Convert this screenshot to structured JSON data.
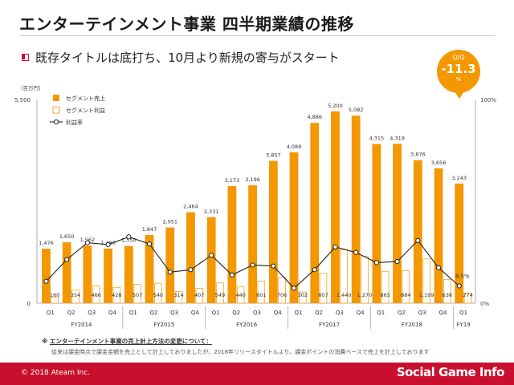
{
  "header": {
    "title": "エンターテインメント事業 四半期業績の推移",
    "subtitle": "既存タイトルは底打ち、10月より新規の寄与がスタート"
  },
  "badge": {
    "label": "Q/Q",
    "value": "-11.3",
    "unit": "%"
  },
  "chart_data": {
    "type": "bar",
    "y_unit_label": "（百万円）",
    "y_left_ticks": [
      "5,500",
      "0"
    ],
    "y_right_ticks": [
      "100%",
      "0%"
    ],
    "ylim_left": [
      0,
      5500
    ],
    "ylim_right": [
      0,
      100
    ],
    "legend": [
      "セグメント売上",
      "セグメント利益",
      "利益率"
    ],
    "legend_position": "top-left",
    "grid": false,
    "colors": {
      "sales": "#f39800",
      "profit_fill": "#ffffff",
      "profit_edge": "#f39800",
      "line": "#222222"
    },
    "categories": [
      "Q1",
      "Q2",
      "Q3",
      "Q4",
      "Q1",
      "Q2",
      "Q3",
      "Q4",
      "Q1",
      "Q2",
      "Q3",
      "Q4",
      "Q1",
      "Q2",
      "Q3",
      "Q4",
      "Q1",
      "Q2",
      "Q3",
      "Q4",
      "Q1"
    ],
    "fiscal_years": [
      {
        "label": "FY2014",
        "count": 4
      },
      {
        "label": "FY2015",
        "count": 4
      },
      {
        "label": "FY2016",
        "count": 4
      },
      {
        "label": "FY2017",
        "count": 4
      },
      {
        "label": "FY2018",
        "count": 4
      },
      {
        "label": "FY19",
        "count": 1
      }
    ],
    "series": [
      {
        "name": "セグメント売上",
        "kind": "bar",
        "values": [
          1476,
          1650,
          1562,
          1480,
          1550,
          1847,
          2051,
          2464,
          2331,
          3173,
          3196,
          3857,
          4089,
          4886,
          5200,
          5082,
          4315,
          4319,
          3876,
          3656,
          3243
        ],
        "labels": [
          "1,476",
          "1,650",
          "1,562",
          "1,480",
          "1,550",
          "1,847",
          "2,051",
          "2,464",
          "2,331",
          "3,173",
          "3,196",
          "3,857",
          "4,089",
          "4,886",
          "5,200",
          "5,082",
          "4,315",
          "4,319",
          "3,876",
          "3,656",
          "3,243"
        ]
      },
      {
        "name": "セグメント利益",
        "kind": "bar",
        "values": [
          160,
          354,
          466,
          428,
          507,
          540,
          314,
          407,
          549,
          440,
          601,
          706,
          302,
          807,
          1440,
          1270,
          865,
          884,
          1199,
          638,
          274
        ],
        "labels": [
          "160",
          "354",
          "466",
          "428",
          "507",
          "540",
          "314",
          "407",
          "549",
          "440",
          "601",
          "706",
          "302",
          "807",
          "1,440",
          "1,270",
          "865",
          "884",
          "1,199",
          "638",
          "274"
        ]
      },
      {
        "name": "利益率",
        "kind": "line",
        "values": [
          10.8,
          21.5,
          29.8,
          28.9,
          32.7,
          29.2,
          15.3,
          16.5,
          23.6,
          13.9,
          18.8,
          18.3,
          7.4,
          16.5,
          27.7,
          25.0,
          20.0,
          20.5,
          30.9,
          17.5,
          8.5
        ],
        "labels": [
          "",
          "",
          "",
          "",
          "",
          "",
          "",
          "",
          "",
          "",
          "",
          "",
          "",
          "",
          "",
          "",
          "",
          "",
          "",
          "",
          "8.5%"
        ]
      }
    ]
  },
  "notes": {
    "mark": "※",
    "heading": "エンターテインメント事業の売上計上方法の変更について：",
    "body": "従来は課金時点で課金金額を売上として計上しておりましたが、2018年リリースタイトルより、課金ポイントの消費ベースで売上を計上しております"
  },
  "footer": {
    "copyright": "© 2018 Ateam Inc.",
    "watermark": "Social Game Info"
  }
}
